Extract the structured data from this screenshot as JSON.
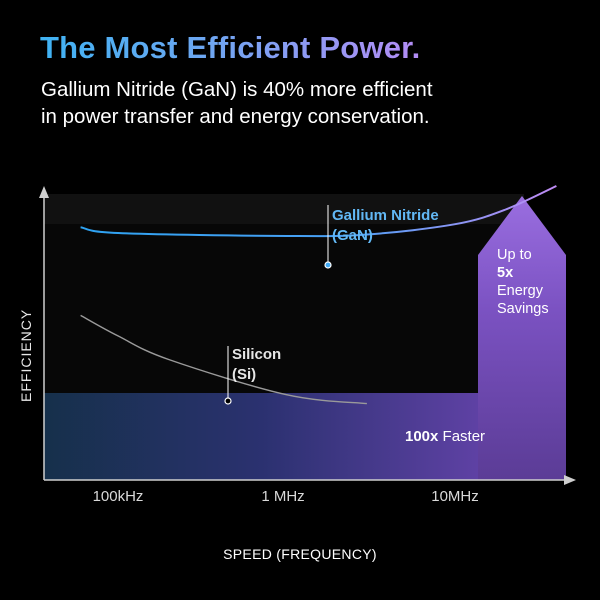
{
  "header": {
    "title": "The Most Efficient Power.",
    "subtitle_line1": "Gallium Nitride (GaN) is 40% more efficient",
    "subtitle_line2": "in power transfer and energy conservation."
  },
  "colors": {
    "gan_line": "#3fa9f5",
    "si_line": "#9a9a9a",
    "accent_purple": "#7b4fc4",
    "title_gradient_start": "#3fb3f3",
    "title_gradient_end": "#b48cf5"
  },
  "chart_data": {
    "type": "line",
    "xlabel": "SPEED (FREQUENCY)",
    "ylabel": "EFFICIENCY",
    "x_scale": "log",
    "x_ticks": [
      "100kHz",
      "1 MHz",
      "10MHz"
    ],
    "y_ticks": [],
    "series": [
      {
        "name": "Gallium Nitride (GaN)",
        "label_line1": "Gallium Nitride",
        "label_line2": "(GaN)",
        "points": [
          {
            "x": "60kHz",
            "y": 0.86
          },
          {
            "x": "100kHz",
            "y": 0.84
          },
          {
            "x": "1 MHz",
            "y": 0.83
          },
          {
            "x": "3MHz",
            "y": 0.835
          },
          {
            "x": "10MHz",
            "y": 0.87
          },
          {
            "x": "20MHz",
            "y": 0.92
          },
          {
            "x": "40MHz",
            "y": 1.0
          }
        ]
      },
      {
        "name": "Silicon (Si)",
        "label_line1": "Silicon",
        "label_line2": "(Si)",
        "points": [
          {
            "x": "60kHz",
            "y": 0.56
          },
          {
            "x": "100kHz",
            "y": 0.49
          },
          {
            "x": "200kHz",
            "y": 0.41
          },
          {
            "x": "1 MHz",
            "y": 0.29
          },
          {
            "x": "3MHz",
            "y": 0.26
          }
        ]
      }
    ],
    "annotations": {
      "energy_line1": "Up to",
      "energy_bold": "5x",
      "energy_line3": "Energy",
      "energy_line4": "Savings",
      "faster_bold": "100x",
      "faster_rest": " Faster"
    },
    "legend": "none",
    "grid": false
  }
}
